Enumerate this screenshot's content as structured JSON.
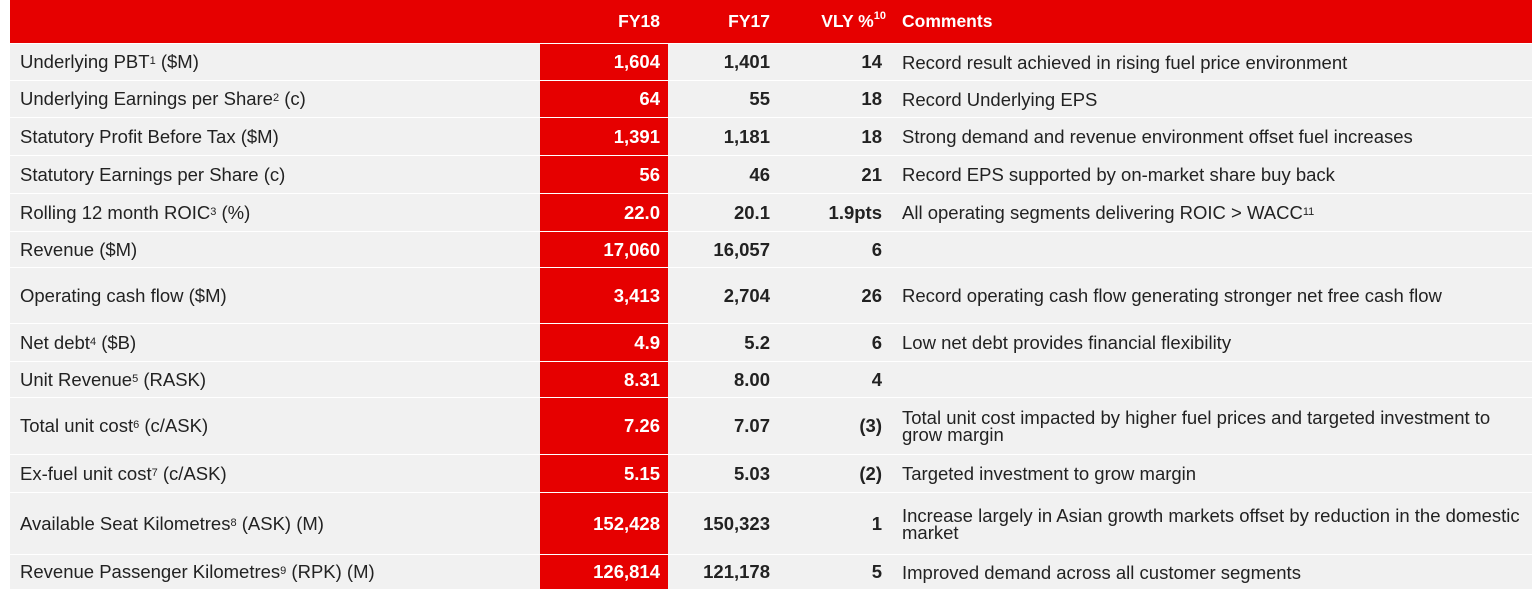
{
  "header": {
    "col_fy18": "FY18",
    "col_fy17": "FY17",
    "col_vly": "VLY %",
    "col_vly_sup": "10",
    "col_comments": "Comments"
  },
  "rows": [
    {
      "label": "Underlying PBT",
      "sup": "1",
      "suffix": " ($M)",
      "fy18": "1,604",
      "fy17": "1,401",
      "vly": "14",
      "comment": "Record result achieved in rising fuel price environment",
      "comment_sup": ""
    },
    {
      "label": "Underlying Earnings per Share",
      "sup": "2",
      "suffix": " (c)",
      "fy18": "64",
      "fy17": "55",
      "vly": "18",
      "comment": "Record Underlying EPS",
      "comment_sup": ""
    },
    {
      "label": "Statutory Profit Before Tax ($M)",
      "sup": "",
      "suffix": "",
      "fy18": "1,391",
      "fy17": "1,181",
      "vly": "18",
      "comment": "Strong demand and revenue environment offset fuel increases",
      "comment_sup": ""
    },
    {
      "label": "Statutory Earnings per Share (c)",
      "sup": "",
      "suffix": "",
      "fy18": "56",
      "fy17": "46",
      "vly": "21",
      "comment": "Record EPS supported by on-market share buy back",
      "comment_sup": ""
    },
    {
      "label": "Rolling 12 month ROIC",
      "sup": "3",
      "suffix": " (%)",
      "fy18": "22.0",
      "fy17": "20.1",
      "vly": "1.9pts",
      "comment": "All operating segments delivering ROIC > WACC",
      "comment_sup": "11"
    },
    {
      "label": "Revenue ($M)",
      "sup": "",
      "suffix": "",
      "fy18": "17,060",
      "fy17": "16,057",
      "vly": "6",
      "comment": "",
      "comment_sup": ""
    },
    {
      "label": "Operating cash flow ($M)",
      "sup": "",
      "suffix": "",
      "fy18": "3,413",
      "fy17": "2,704",
      "vly": "26",
      "comment": "Record operating cash flow generating stronger net free cash flow",
      "comment_sup": ""
    },
    {
      "label": "Net debt",
      "sup": "4",
      "suffix": " ($B)",
      "fy18": "4.9",
      "fy17": "5.2",
      "vly": "6",
      "comment": "Low net debt provides financial flexibility",
      "comment_sup": ""
    },
    {
      "label": "Unit Revenue",
      "sup": "5",
      "suffix": " (RASK)",
      "fy18": "8.31",
      "fy17": "8.00",
      "vly": "4",
      "comment": "",
      "comment_sup": ""
    },
    {
      "label": "Total unit cost",
      "sup": "6",
      "suffix": " (c/ASK)",
      "fy18": "7.26",
      "fy17": "7.07",
      "vly": "(3)",
      "comment": "Total unit cost impacted by higher fuel prices and targeted investment to grow margin",
      "comment_sup": ""
    },
    {
      "label": "Ex-fuel unit cost",
      "sup": "7",
      "suffix": " (c/ASK)",
      "fy18": "5.15",
      "fy17": "5.03",
      "vly": "(2)",
      "comment": "Targeted investment to grow margin",
      "comment_sup": ""
    },
    {
      "label": "Available Seat Kilometres",
      "sup": "8",
      "suffix": " (ASK) (M)",
      "fy18": "152,428",
      "fy17": "150,323",
      "vly": "1",
      "comment": "Increase largely in Asian growth markets offset by reduction in the domestic market",
      "comment_sup": ""
    },
    {
      "label": "Revenue Passenger Kilometres",
      "sup": "9",
      "suffix": " (RPK) (M)",
      "fy18": "126,814",
      "fy17": "121,178",
      "vly": "5",
      "comment": "Improved demand across all customer segments",
      "comment_sup": ""
    }
  ]
}
